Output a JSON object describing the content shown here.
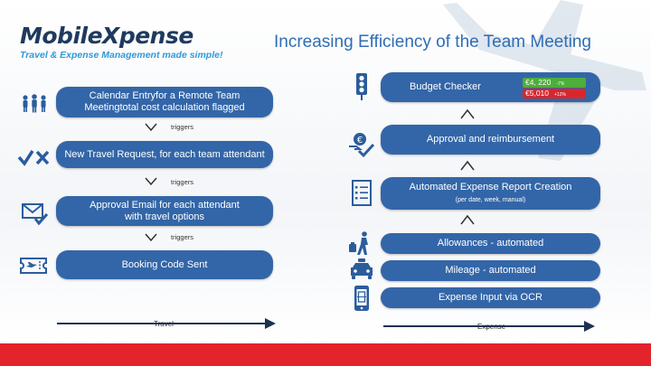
{
  "brand": {
    "name": "MobileXpense",
    "tagline": "Travel & Expense Management made simple!"
  },
  "title": "Increasing Efficiency of the Team Meeting",
  "travel": {
    "steps": [
      {
        "label": "Calendar Entryfor a Remote Team Meetingtotal cost calculation flagged",
        "icon": "people-icon"
      },
      {
        "label": "New Travel Request, for each team attendant",
        "icon": "check-cross-icon"
      },
      {
        "label": "Approval Email for each attendant with travel options",
        "icon": "email-check-icon"
      },
      {
        "label": "Booking Code Sent",
        "icon": "ticket-icon"
      }
    ],
    "connector": "triggers",
    "axis_label": "Travel"
  },
  "expense": {
    "steps": [
      {
        "label": "Budget Checker",
        "icon": "traffic-light-icon"
      },
      {
        "label": "Approval and reimbursement",
        "icon": "euro-coin-check-icon"
      },
      {
        "label": "Automated Expense Report Creation",
        "sublabel": "(per date, week, manual)",
        "icon": "report-list-icon"
      },
      {
        "label": "Allowances - automated",
        "icon": "traveler-icon"
      },
      {
        "label": "Mileage - automated",
        "icon": "car-icon"
      },
      {
        "label": "Expense Input via OCR",
        "icon": "phone-scan-icon"
      }
    ],
    "budget": {
      "green": {
        "value": "€4, 220",
        "pct": "-7%",
        "color": "#4cae3c"
      },
      "red": {
        "value": "€5,010",
        "pct": "+12%",
        "color": "#d9262c"
      }
    },
    "axis_label": "Expense"
  },
  "colors": {
    "pill": "#3366a8",
    "title": "#2f6db3",
    "footer": "#e3242b",
    "icon": "#2b5d9b"
  }
}
